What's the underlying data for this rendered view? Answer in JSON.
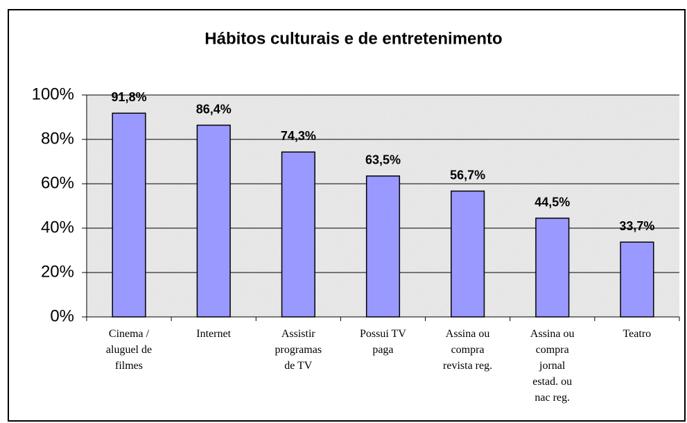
{
  "chart_data": {
    "type": "bar",
    "title": "Hábitos culturais e de entretenimento",
    "categories": [
      "Cinema /\naluguel de\nfilmes",
      "Internet",
      "Assistir\nprogramas\nde TV",
      "Possui TV\npaga",
      "Assina ou\ncompra\nrevista reg.",
      "Assina ou\ncompra\njornal\nestad. ou\nnac reg.",
      "Teatro"
    ],
    "values": [
      91.8,
      86.4,
      74.3,
      63.5,
      56.7,
      44.5,
      33.7
    ],
    "value_labels": [
      "91,8%",
      "86,4%",
      "74,3%",
      "63,5%",
      "56,7%",
      "44,5%",
      "33,7%"
    ],
    "color": "#9999ff",
    "ylim": [
      0,
      100
    ],
    "yticks": [
      {
        "value": 0,
        "label": "0%"
      },
      {
        "value": 20,
        "label": "20%"
      },
      {
        "value": 40,
        "label": "40%"
      },
      {
        "value": 60,
        "label": "60%"
      },
      {
        "value": 80,
        "label": "80%"
      },
      {
        "value": 100,
        "label": "100%"
      }
    ],
    "grid": true
  }
}
